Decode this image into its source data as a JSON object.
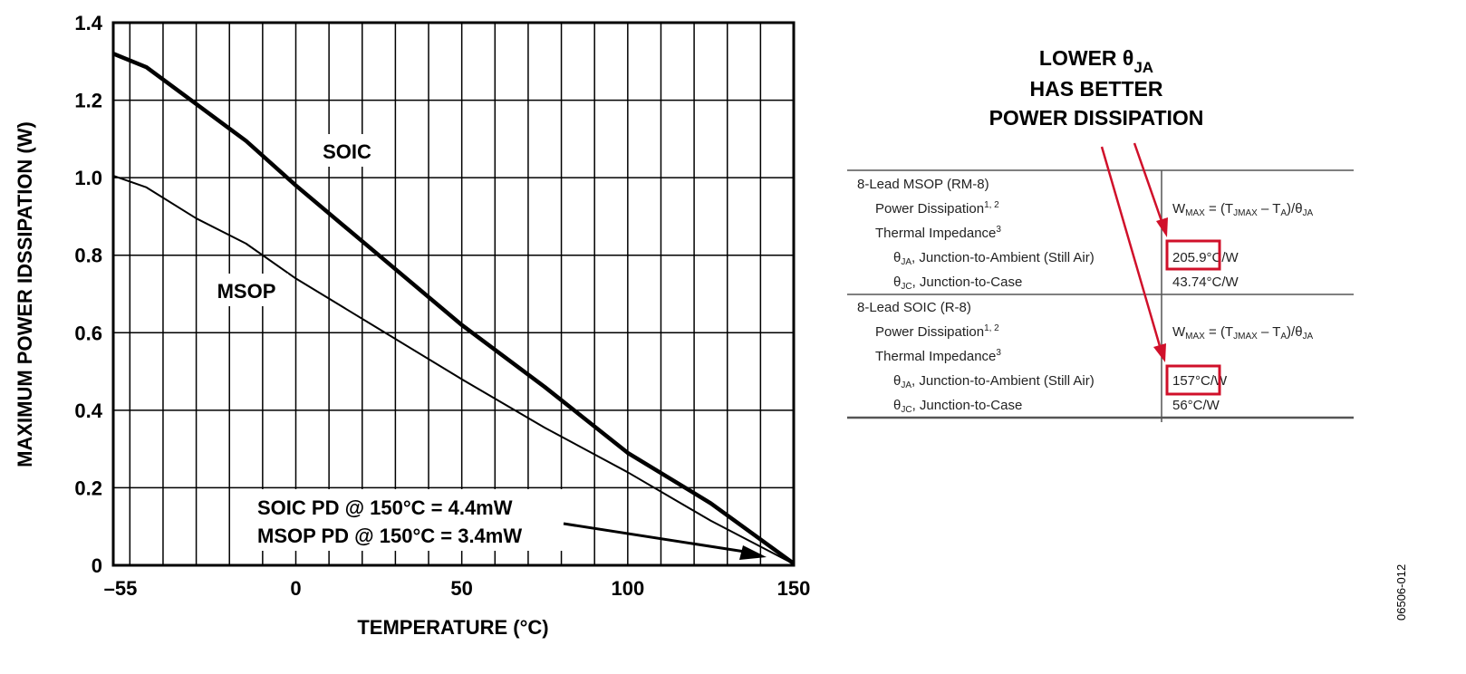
{
  "chart_data": {
    "type": "line",
    "xlabel": "TEMPERATURE (°C)",
    "ylabel": "MAXIMUM POWER IDSSIPATION (W)",
    "xlim": [
      -55,
      150
    ],
    "ylim": [
      0,
      1.4
    ],
    "grid": true,
    "x_tick_labels": [
      "–55",
      "0",
      "50",
      "100",
      "150"
    ],
    "y_tick_labels": [
      "0",
      "0.2",
      "0.4",
      "0.6",
      "0.8",
      "1.0",
      "1.2",
      "1.4"
    ],
    "series": [
      {
        "name": "SOIC",
        "x": [
          -55,
          -45,
          -30,
          -15,
          0,
          25,
          50,
          75,
          100,
          125,
          150
        ],
        "y": [
          1.32,
          1.285,
          1.19,
          1.095,
          0.98,
          0.8,
          0.62,
          0.46,
          0.29,
          0.16,
          0.0044
        ]
      },
      {
        "name": "MSOP",
        "x": [
          -55,
          -45,
          -30,
          -15,
          0,
          25,
          50,
          75,
          100,
          125,
          150
        ],
        "y": [
          1.005,
          0.975,
          0.895,
          0.83,
          0.74,
          0.61,
          0.48,
          0.355,
          0.24,
          0.115,
          0.0034
        ]
      }
    ],
    "annotations": [
      "SOIC PD @ 150°C = 4.4mW",
      "MSOP PD @ 150°C = 3.4mW"
    ]
  },
  "callout": {
    "line1_main": "LOWER θ",
    "line1_sub": "JA",
    "line2": "HAS BETTER",
    "line3": "POWER DISSIPATION"
  },
  "spec_table": {
    "sections": [
      {
        "title": "8-Lead MSOP (RM-8)",
        "rows": [
          {
            "label": "Power Dissipation",
            "label_sup": "1, 2",
            "value": "W",
            "value_sub": "MAX",
            "value_rest": " = (T",
            "value_sub2": "JMAX",
            "value_rest2": " – T",
            "value_sub3": "A",
            "value_rest3": ")/θ",
            "value_sub4": "JA"
          },
          {
            "label": "Thermal Impedance",
            "label_sup": "3",
            "value": ""
          },
          {
            "label": "θ",
            "label_sub": "JA",
            "label_rest": ", Junction-to-Ambient (Still Air)",
            "value": "205.9°C/W"
          },
          {
            "label": "θ",
            "label_sub": "JC",
            "label_rest": ", Junction-to-Case",
            "value": "43.74°C/W"
          }
        ]
      },
      {
        "title": "8-Lead SOIC (R-8)",
        "rows": [
          {
            "label": "Power Dissipation",
            "label_sup": "1, 2",
            "value": "W",
            "value_sub": "MAX",
            "value_rest": " = (T",
            "value_sub2": "JMAX",
            "value_rest2": " – T",
            "value_sub3": "A",
            "value_rest3": ")/θ",
            "value_sub4": "JA"
          },
          {
            "label": "Thermal Impedance",
            "label_sup": "3",
            "value": ""
          },
          {
            "label": "θ",
            "label_sub": "JA",
            "label_rest": ", Junction-to-Ambient (Still Air)",
            "value": "157°C/W"
          },
          {
            "label": "θ",
            "label_sub": "JC",
            "label_rest": ", Junction-to-Case",
            "value": "56°C/W"
          }
        ]
      }
    ]
  },
  "figure_id": "06506-012",
  "colors": {
    "highlight": "#d0102a",
    "arrow": "#d0102a",
    "line": "#000000",
    "table_rule": "#555555"
  }
}
